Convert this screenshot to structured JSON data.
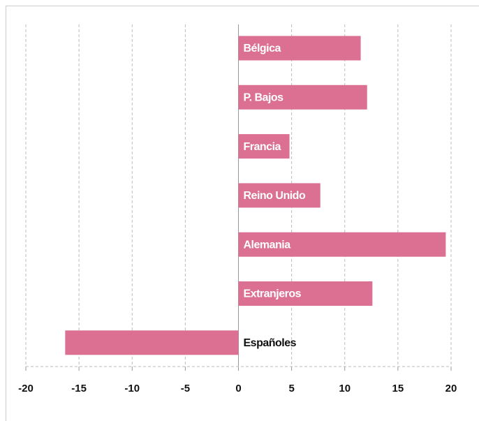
{
  "chart_data": {
    "type": "bar",
    "orientation": "horizontal",
    "categories": [
      "Bélgica",
      "P. Bajos",
      "Francia",
      "Reino Unido",
      "Alemania",
      "Extranjeros",
      "Españoles"
    ],
    "values": [
      11.5,
      12.1,
      4.8,
      7.7,
      19.5,
      12.6,
      -16.3
    ],
    "color": "#dc7093",
    "xlim": [
      -20,
      20
    ],
    "xticks": [
      -20,
      -15,
      -10,
      -5,
      0,
      5,
      10,
      15,
      20
    ],
    "grid": true
  }
}
